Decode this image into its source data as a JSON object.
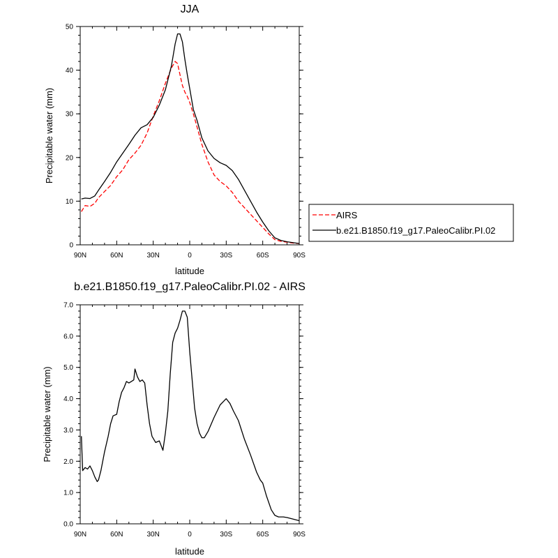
{
  "chart_data": [
    {
      "type": "line",
      "title": "JJA",
      "xlabel": "latitude",
      "ylabel": "Precipitable water (mm)",
      "xlim": [
        90,
        -90
      ],
      "ylim": [
        0,
        50
      ],
      "xticks": [
        90,
        60,
        30,
        0,
        -30,
        -60,
        -90
      ],
      "xtick_labels": [
        "90N",
        "60N",
        "30N",
        "0",
        "30S",
        "60S",
        "90S"
      ],
      "yticks": [
        0,
        10,
        20,
        30,
        40,
        50
      ],
      "ytick_labels": [
        "0",
        "10",
        "20",
        "30",
        "40",
        "50"
      ],
      "legend_position": "right",
      "series": [
        {
          "name": "AIRS",
          "color": "#ff0000",
          "style": "dashed",
          "x": [
            89,
            86,
            82,
            78,
            75,
            70,
            65,
            60,
            55,
            50,
            45,
            40,
            35,
            30,
            25,
            20,
            15,
            12,
            10,
            8,
            6,
            4,
            2,
            0,
            -3,
            -6,
            -10,
            -15,
            -20,
            -25,
            -30,
            -35,
            -40,
            -45,
            -50,
            -55,
            -60,
            -65,
            -70,
            -75,
            -80,
            -85,
            -90
          ],
          "y": [
            7.6,
            9.0,
            8.8,
            9.5,
            10.8,
            12.2,
            13.6,
            15.6,
            17.2,
            19.5,
            21.0,
            22.8,
            25.6,
            29.5,
            33.0,
            37.0,
            40.5,
            42.0,
            41.5,
            39.0,
            36.5,
            35.0,
            34.0,
            32.6,
            30.0,
            27.0,
            23.0,
            19.0,
            16.0,
            14.5,
            13.5,
            12.0,
            10.0,
            8.5,
            7.0,
            5.5,
            4.0,
            2.5,
            1.2,
            0.8,
            0.6,
            0.4,
            0.3
          ]
        },
        {
          "name": "b.e21.B1850.f19_g17.PaleoCalibr.PI.02",
          "color": "#000000",
          "style": "solid",
          "x": [
            89,
            86,
            82,
            78,
            75,
            70,
            65,
            60,
            55,
            50,
            45,
            40,
            35,
            30,
            25,
            20,
            15,
            12,
            10,
            8,
            6,
            4,
            2,
            0,
            -3,
            -6,
            -10,
            -15,
            -20,
            -25,
            -30,
            -35,
            -40,
            -45,
            -50,
            -55,
            -60,
            -65,
            -70,
            -75,
            -80,
            -85,
            -90
          ],
          "y": [
            10.5,
            10.7,
            10.6,
            11.2,
            12.5,
            14.5,
            16.6,
            19.0,
            21.0,
            23.0,
            25.1,
            26.8,
            27.5,
            29.2,
            32.0,
            35.5,
            41.0,
            46.0,
            48.3,
            48.3,
            46.5,
            42.5,
            39.0,
            35.8,
            31.0,
            28.5,
            24.5,
            21.5,
            19.8,
            18.8,
            18.2,
            17.0,
            15.0,
            12.5,
            10.0,
            7.5,
            5.2,
            3.2,
            1.6,
            1.0,
            0.7,
            0.5,
            0.3
          ]
        }
      ]
    },
    {
      "type": "line",
      "title": "b.e21.B1850.f19_g17.PaleoCalibr.PI.02 - AIRS",
      "xlabel": "latitude",
      "ylabel": "Precipitable water (mm)",
      "xlim": [
        90,
        -90
      ],
      "ylim": [
        0,
        7
      ],
      "xticks": [
        90,
        60,
        30,
        0,
        -30,
        -60,
        -90
      ],
      "xtick_labels": [
        "90N",
        "60N",
        "30N",
        "0",
        "30S",
        "60S",
        "90S"
      ],
      "yticks": [
        0,
        1,
        2,
        3,
        4,
        5,
        6,
        7
      ],
      "ytick_labels": [
        "0.0",
        "1.0",
        "2.0",
        "3.0",
        "4.0",
        "5.0",
        "6.0",
        "7.0"
      ],
      "series": [
        {
          "color": "#000000",
          "style": "solid",
          "x": [
            89,
            88,
            86,
            84,
            82,
            80,
            78,
            76,
            75,
            73,
            70,
            67,
            65,
            63,
            60,
            58,
            56,
            54,
            52,
            50,
            48,
            46,
            45,
            43,
            41,
            39,
            37,
            35,
            33,
            31,
            28,
            25,
            22,
            20,
            18,
            16,
            14,
            12,
            10,
            8,
            6,
            4,
            2,
            0,
            -2,
            -4,
            -6,
            -8,
            -10,
            -12,
            -15,
            -20,
            -25,
            -30,
            -33,
            -36,
            -40,
            -45,
            -50,
            -55,
            -58,
            -60,
            -63,
            -67,
            -70,
            -73,
            -77,
            -80,
            -85,
            -90
          ],
          "y": [
            2.8,
            1.7,
            1.8,
            1.75,
            1.85,
            1.7,
            1.5,
            1.35,
            1.4,
            1.7,
            2.3,
            2.8,
            3.2,
            3.45,
            3.5,
            3.9,
            4.2,
            4.35,
            4.55,
            4.5,
            4.55,
            4.6,
            4.95,
            4.7,
            4.55,
            4.6,
            4.5,
            3.8,
            3.2,
            2.8,
            2.6,
            2.65,
            2.35,
            2.9,
            3.6,
            4.8,
            5.8,
            6.1,
            6.25,
            6.5,
            6.8,
            6.8,
            6.6,
            5.5,
            4.6,
            3.7,
            3.2,
            2.9,
            2.75,
            2.75,
            2.95,
            3.4,
            3.8,
            4.0,
            3.85,
            3.6,
            3.3,
            2.7,
            2.2,
            1.65,
            1.4,
            1.3,
            0.9,
            0.45,
            0.27,
            0.22,
            0.22,
            0.2,
            0.15,
            0.1
          ]
        }
      ]
    }
  ]
}
